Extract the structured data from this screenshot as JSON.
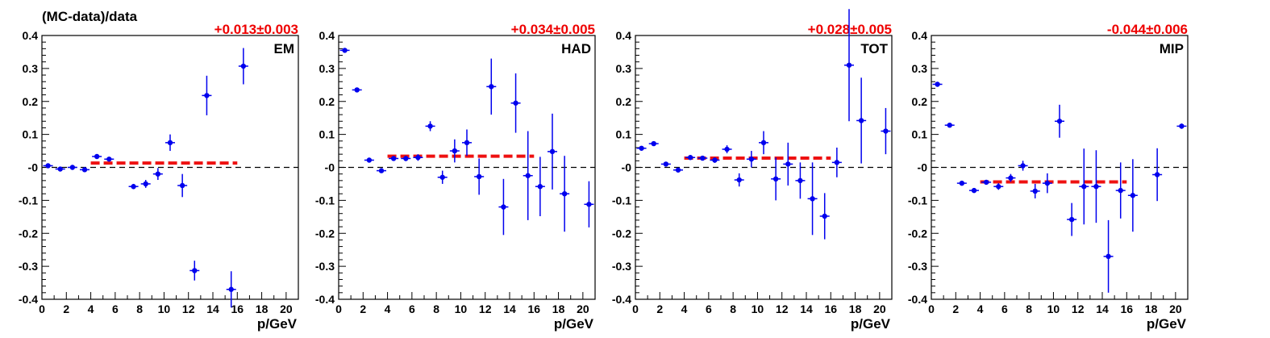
{
  "figure": {
    "ylabel": "(MC-data)/data"
  },
  "chart_data": [
    {
      "type": "scatter",
      "panel": "EM",
      "label": "EM",
      "fit_text": "+0.013±0.003",
      "xlabel": "p/GeV",
      "xlim": [
        0,
        21
      ],
      "ylim": [
        -0.4,
        0.4
      ],
      "xticks": [
        0,
        2,
        4,
        6,
        8,
        10,
        12,
        14,
        16,
        18,
        20
      ],
      "yticks": [
        -0.4,
        -0.3,
        -0.2,
        -0.1,
        0,
        0.1,
        0.2,
        0.3,
        0.4
      ],
      "ytick_labels": [
        "-0.4",
        "-0.3",
        "-0.2",
        "-0.1",
        "-0",
        "0.1",
        "0.2",
        "0.3",
        "0.4"
      ],
      "fit_line": {
        "value": 0.013,
        "x_range": [
          4,
          16
        ]
      },
      "reference_line": 0,
      "points": [
        {
          "x": 0.5,
          "y": 0.005,
          "err": 0.004
        },
        {
          "x": 1.5,
          "y": -0.005,
          "err": 0.004
        },
        {
          "x": 2.5,
          "y": 0.0,
          "err": 0.004
        },
        {
          "x": 3.5,
          "y": -0.007,
          "err": 0.005
        },
        {
          "x": 4.5,
          "y": 0.033,
          "err": 0.005
        },
        {
          "x": 5.5,
          "y": 0.025,
          "err": 0.006
        },
        {
          "x": 7.5,
          "y": -0.058,
          "err": 0.008
        },
        {
          "x": 8.5,
          "y": -0.05,
          "err": 0.012
        },
        {
          "x": 9.5,
          "y": -0.02,
          "err": 0.018
        },
        {
          "x": 10.5,
          "y": 0.075,
          "err": 0.025
        },
        {
          "x": 11.5,
          "y": -0.055,
          "err": 0.035
        },
        {
          "x": 12.5,
          "y": -0.313,
          "err": 0.03
        },
        {
          "x": 13.5,
          "y": 0.218,
          "err": 0.06
        },
        {
          "x": 15.5,
          "y": -0.37,
          "err": 0.055
        },
        {
          "x": 16.5,
          "y": 0.307,
          "err": 0.055
        }
      ]
    },
    {
      "type": "scatter",
      "panel": "HAD",
      "label": "HAD",
      "fit_text": "+0.034±0.005",
      "xlabel": "p/GeV",
      "xlim": [
        0,
        21
      ],
      "ylim": [
        -0.4,
        0.4
      ],
      "xticks": [
        0,
        2,
        4,
        6,
        8,
        10,
        12,
        14,
        16,
        18,
        20
      ],
      "yticks": [
        -0.4,
        -0.3,
        -0.2,
        -0.1,
        0,
        0.1,
        0.2,
        0.3,
        0.4
      ],
      "ytick_labels": [
        "-0.4",
        "-0.3",
        "-0.2",
        "-0.1",
        "-0",
        "0.1",
        "0.2",
        "0.3",
        "0.4"
      ],
      "fit_line": {
        "value": 0.034,
        "x_range": [
          4,
          16
        ]
      },
      "reference_line": 0,
      "points": [
        {
          "x": 0.5,
          "y": 0.355,
          "err": 0.005
        },
        {
          "x": 1.5,
          "y": 0.235,
          "err": 0.005
        },
        {
          "x": 2.5,
          "y": 0.022,
          "err": 0.005
        },
        {
          "x": 3.5,
          "y": -0.01,
          "err": 0.006
        },
        {
          "x": 4.5,
          "y": 0.027,
          "err": 0.007
        },
        {
          "x": 5.5,
          "y": 0.027,
          "err": 0.008
        },
        {
          "x": 6.5,
          "y": 0.03,
          "err": 0.01
        },
        {
          "x": 7.5,
          "y": 0.125,
          "err": 0.015
        },
        {
          "x": 8.5,
          "y": -0.03,
          "err": 0.02
        },
        {
          "x": 9.5,
          "y": 0.05,
          "err": 0.035
        },
        {
          "x": 10.5,
          "y": 0.075,
          "err": 0.04
        },
        {
          "x": 11.5,
          "y": -0.028,
          "err": 0.055
        },
        {
          "x": 12.5,
          "y": 0.245,
          "err": 0.085
        },
        {
          "x": 13.5,
          "y": -0.12,
          "err": 0.085
        },
        {
          "x": 14.5,
          "y": 0.195,
          "err": 0.09
        },
        {
          "x": 15.5,
          "y": -0.025,
          "err": 0.135
        },
        {
          "x": 16.5,
          "y": -0.058,
          "err": 0.09
        },
        {
          "x": 17.5,
          "y": 0.048,
          "err": 0.115
        },
        {
          "x": 18.5,
          "y": -0.08,
          "err": 0.115
        },
        {
          "x": 20.5,
          "y": -0.112,
          "err": 0.07
        }
      ]
    },
    {
      "type": "scatter",
      "panel": "TOT",
      "label": "TOT",
      "fit_text": "+0.028±0.005",
      "xlabel": "p/GeV",
      "xlim": [
        0,
        21
      ],
      "ylim": [
        -0.4,
        0.4
      ],
      "xticks": [
        0,
        2,
        4,
        6,
        8,
        10,
        12,
        14,
        16,
        18,
        20
      ],
      "yticks": [
        -0.4,
        -0.3,
        -0.2,
        -0.1,
        0,
        0.1,
        0.2,
        0.3,
        0.4
      ],
      "ytick_labels": [
        "-0.4",
        "-0.3",
        "-0.2",
        "-0.1",
        "-0",
        "0.1",
        "0.2",
        "0.3",
        "0.4"
      ],
      "fit_line": {
        "value": 0.028,
        "x_range": [
          4,
          16
        ]
      },
      "reference_line": 0,
      "points": [
        {
          "x": 0.5,
          "y": 0.058,
          "err": 0.005
        },
        {
          "x": 1.5,
          "y": 0.072,
          "err": 0.005
        },
        {
          "x": 2.5,
          "y": 0.01,
          "err": 0.005
        },
        {
          "x": 3.5,
          "y": -0.008,
          "err": 0.005
        },
        {
          "x": 4.5,
          "y": 0.03,
          "err": 0.005
        },
        {
          "x": 5.5,
          "y": 0.028,
          "err": 0.006
        },
        {
          "x": 6.5,
          "y": 0.022,
          "err": 0.008
        },
        {
          "x": 7.5,
          "y": 0.055,
          "err": 0.012
        },
        {
          "x": 8.5,
          "y": -0.038,
          "err": 0.02
        },
        {
          "x": 9.5,
          "y": 0.025,
          "err": 0.025
        },
        {
          "x": 10.5,
          "y": 0.075,
          "err": 0.035
        },
        {
          "x": 11.5,
          "y": -0.035,
          "err": 0.065
        },
        {
          "x": 12.5,
          "y": 0.01,
          "err": 0.065
        },
        {
          "x": 13.5,
          "y": -0.04,
          "err": 0.055
        },
        {
          "x": 14.5,
          "y": -0.095,
          "err": 0.11
        },
        {
          "x": 15.5,
          "y": -0.148,
          "err": 0.07
        },
        {
          "x": 16.5,
          "y": 0.015,
          "err": 0.045
        },
        {
          "x": 17.5,
          "y": 0.31,
          "err": 0.17
        },
        {
          "x": 18.5,
          "y": 0.142,
          "err": 0.13
        },
        {
          "x": 20.5,
          "y": 0.11,
          "err": 0.07
        }
      ]
    },
    {
      "type": "scatter",
      "panel": "MIP",
      "label": "MIP",
      "fit_text": "-0.044±0.006",
      "xlabel": "p/GeV",
      "xlim": [
        0,
        21
      ],
      "ylim": [
        -0.4,
        0.4
      ],
      "xticks": [
        0,
        2,
        4,
        6,
        8,
        10,
        12,
        14,
        16,
        18,
        20
      ],
      "yticks": [
        -0.4,
        -0.3,
        -0.2,
        -0.1,
        0,
        0.1,
        0.2,
        0.3,
        0.4
      ],
      "ytick_labels": [
        "-0.4",
        "-0.3",
        "-0.2",
        "-0.1",
        "-0",
        "0.1",
        "0.2",
        "0.3",
        "0.4"
      ],
      "fit_line": {
        "value": -0.044,
        "x_range": [
          4,
          16
        ]
      },
      "reference_line": 0,
      "points": [
        {
          "x": 0.5,
          "y": 0.252,
          "err": 0.005
        },
        {
          "x": 1.5,
          "y": 0.128,
          "err": 0.005
        },
        {
          "x": 2.5,
          "y": -0.048,
          "err": 0.005
        },
        {
          "x": 3.5,
          "y": -0.07,
          "err": 0.006
        },
        {
          "x": 4.5,
          "y": -0.045,
          "err": 0.007
        },
        {
          "x": 5.5,
          "y": -0.058,
          "err": 0.01
        },
        {
          "x": 6.5,
          "y": -0.032,
          "err": 0.012
        },
        {
          "x": 7.5,
          "y": 0.005,
          "err": 0.015
        },
        {
          "x": 8.5,
          "y": -0.072,
          "err": 0.022
        },
        {
          "x": 9.5,
          "y": -0.048,
          "err": 0.03
        },
        {
          "x": 10.5,
          "y": 0.14,
          "err": 0.05
        },
        {
          "x": 11.5,
          "y": -0.158,
          "err": 0.05
        },
        {
          "x": 12.5,
          "y": -0.058,
          "err": 0.115
        },
        {
          "x": 13.5,
          "y": -0.058,
          "err": 0.11
        },
        {
          "x": 14.5,
          "y": -0.27,
          "err": 0.11
        },
        {
          "x": 15.5,
          "y": -0.07,
          "err": 0.085
        },
        {
          "x": 16.5,
          "y": -0.085,
          "err": 0.11
        },
        {
          "x": 18.5,
          "y": -0.022,
          "err": 0.08
        },
        {
          "x": 20.5,
          "y": 0.125,
          "err": 0.008
        }
      ]
    }
  ],
  "colors": {
    "points": "#0000ee",
    "fit": "#ee1111",
    "fit_text": "#ee0000",
    "axis": "#000000",
    "reference": "#000000"
  }
}
